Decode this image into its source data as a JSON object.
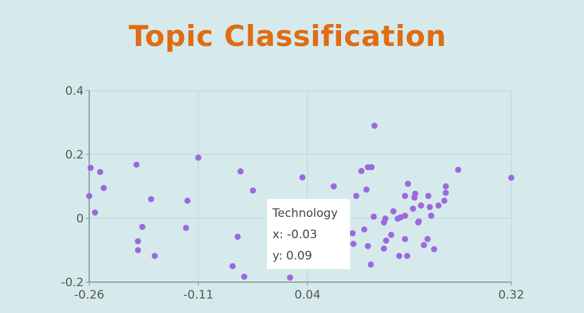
{
  "chart_data": {
    "type": "scatter",
    "title": "Topic Classification",
    "xlabel": "",
    "ylabel": "",
    "xlim": [
      -0.26,
      0.32
    ],
    "ylim": [
      -0.2,
      0.4
    ],
    "x_ticks": [
      "-0.26",
      "-0.11",
      "0.04",
      "0.32"
    ],
    "y_ticks": [
      "0.4",
      "0.2",
      "0",
      "-0.2"
    ],
    "x_tick_values": [
      -0.26,
      -0.11,
      0.04,
      0.32
    ],
    "y_tick_values": [
      0.4,
      0.2,
      0,
      -0.2
    ],
    "grid": true,
    "point_color": "#9b69dd",
    "points": [
      {
        "x": -0.258,
        "y": 0.158
      },
      {
        "x": -0.26,
        "y": 0.07
      },
      {
        "x": -0.252,
        "y": 0.018
      },
      {
        "x": -0.245,
        "y": 0.145
      },
      {
        "x": -0.24,
        "y": 0.095
      },
      {
        "x": -0.195,
        "y": 0.168
      },
      {
        "x": -0.193,
        "y": -0.072
      },
      {
        "x": -0.193,
        "y": -0.1
      },
      {
        "x": -0.187,
        "y": -0.027
      },
      {
        "x": -0.175,
        "y": 0.06
      },
      {
        "x": -0.17,
        "y": -0.118
      },
      {
        "x": -0.125,
        "y": 0.055
      },
      {
        "x": -0.127,
        "y": -0.03
      },
      {
        "x": -0.11,
        "y": 0.19
      },
      {
        "x": -0.063,
        "y": -0.15
      },
      {
        "x": -0.056,
        "y": -0.058
      },
      {
        "x": -0.052,
        "y": 0.147
      },
      {
        "x": -0.047,
        "y": -0.183
      },
      {
        "x": -0.035,
        "y": 0.087
      },
      {
        "x": 0.016,
        "y": -0.186
      },
      {
        "x": 0.033,
        "y": 0.128
      },
      {
        "x": 0.076,
        "y": 0.1
      },
      {
        "x": 0.089,
        "y": -0.027
      },
      {
        "x": 0.094,
        "y": -0.108
      },
      {
        "x": 0.103,
        "y": -0.08
      },
      {
        "x": 0.102,
        "y": -0.047
      },
      {
        "x": 0.107,
        "y": 0.07
      },
      {
        "x": 0.114,
        "y": 0.148
      },
      {
        "x": 0.123,
        "y": 0.16
      },
      {
        "x": 0.121,
        "y": 0.09
      },
      {
        "x": 0.118,
        "y": -0.035
      },
      {
        "x": 0.123,
        "y": -0.087
      },
      {
        "x": 0.128,
        "y": 0.16
      },
      {
        "x": 0.131,
        "y": 0.005
      },
      {
        "x": 0.127,
        "y": -0.145
      },
      {
        "x": 0.132,
        "y": 0.29
      },
      {
        "x": 0.145,
        "y": -0.013
      },
      {
        "x": 0.147,
        "y": -0.001
      },
      {
        "x": 0.145,
        "y": -0.095
      },
      {
        "x": 0.148,
        "y": -0.07
      },
      {
        "x": 0.155,
        "y": -0.052
      },
      {
        "x": 0.158,
        "y": 0.022
      },
      {
        "x": 0.164,
        "y": -0.001
      },
      {
        "x": 0.168,
        "y": 0.003
      },
      {
        "x": 0.166,
        "y": -0.118
      },
      {
        "x": 0.174,
        "y": 0.008
      },
      {
        "x": 0.174,
        "y": 0.07
      },
      {
        "x": 0.178,
        "y": 0.108
      },
      {
        "x": 0.177,
        "y": -0.118
      },
      {
        "x": 0.174,
        "y": -0.065
      },
      {
        "x": 0.185,
        "y": 0.03
      },
      {
        "x": 0.187,
        "y": 0.065
      },
      {
        "x": 0.188,
        "y": 0.077
      },
      {
        "x": 0.193,
        "y": -0.01
      },
      {
        "x": 0.192,
        "y": -0.013
      },
      {
        "x": 0.196,
        "y": 0.04
      },
      {
        "x": 0.2,
        "y": -0.084
      },
      {
        "x": 0.205,
        "y": -0.065
      },
      {
        "x": 0.206,
        "y": 0.07
      },
      {
        "x": 0.208,
        "y": 0.035
      },
      {
        "x": 0.21,
        "y": 0.008
      },
      {
        "x": 0.214,
        "y": -0.097
      },
      {
        "x": 0.22,
        "y": 0.04
      },
      {
        "x": 0.228,
        "y": 0.055
      },
      {
        "x": 0.23,
        "y": 0.08
      },
      {
        "x": 0.23,
        "y": 0.1
      },
      {
        "x": 0.247,
        "y": 0.152
      },
      {
        "x": 0.32,
        "y": 0.127
      }
    ],
    "tooltip": {
      "label": "Technology",
      "x_text": "x: -0.03",
      "y_text": "y: 0.09"
    }
  }
}
